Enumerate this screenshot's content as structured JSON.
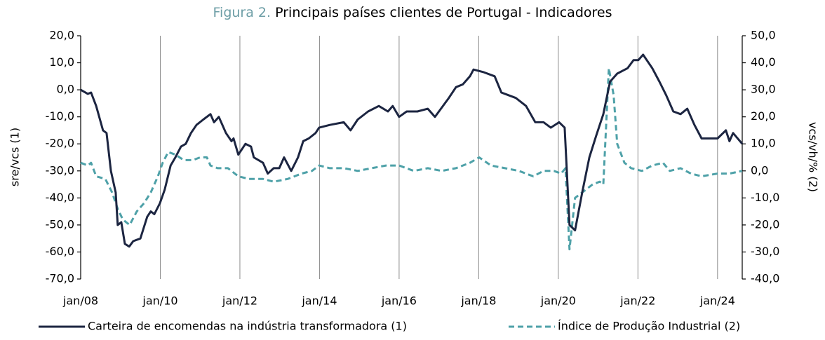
{
  "chart_data": {
    "type": "line",
    "title_label": "Figura 2.",
    "title": "Principais países clientes de Portugal - Indicadores",
    "ylabel": "sre/vcs (1)",
    "y2label": "vcs/vh/% (2)",
    "xlim": [
      2008,
      2024.62
    ],
    "xticks": [
      {
        "value": 2008,
        "label": "jan/08"
      },
      {
        "value": 2010,
        "label": "jan/10"
      },
      {
        "value": 2012,
        "label": "jan/12"
      },
      {
        "value": 2014,
        "label": "jan/14"
      },
      {
        "value": 2016,
        "label": "jan/16"
      },
      {
        "value": 2018,
        "label": "jan/18"
      },
      {
        "value": 2020,
        "label": "jan/20"
      },
      {
        "value": 2022,
        "label": "jan/22"
      },
      {
        "value": 2024,
        "label": "jan/24"
      }
    ],
    "ylim": [
      -70,
      20
    ],
    "yticks": [
      {
        "value": 20,
        "label": "20,0"
      },
      {
        "value": 10,
        "label": "10,0"
      },
      {
        "value": 0,
        "label": "0,0"
      },
      {
        "value": -10,
        "label": "-10,0"
      },
      {
        "value": -20,
        "label": "-20,0"
      },
      {
        "value": -30,
        "label": "-30,0"
      },
      {
        "value": -40,
        "label": "-40,0"
      },
      {
        "value": -50,
        "label": "-50,0"
      },
      {
        "value": -60,
        "label": "-60,0"
      },
      {
        "value": -70,
        "label": "-70,0"
      }
    ],
    "y2lim": [
      -40,
      50
    ],
    "y2ticks": [
      {
        "value": 50,
        "label": "50,0"
      },
      {
        "value": 40,
        "label": "40,0"
      },
      {
        "value": 30,
        "label": "30,0"
      },
      {
        "value": 20,
        "label": "20,0"
      },
      {
        "value": 10,
        "label": "10,0"
      },
      {
        "value": 0,
        "label": "0,0"
      },
      {
        "value": -10,
        "label": "-10,0"
      },
      {
        "value": -20,
        "label": "-20,0"
      },
      {
        "value": -30,
        "label": "-30,0"
      },
      {
        "value": -40,
        "label": "-40,0"
      }
    ],
    "grid": "x",
    "series": [
      {
        "name": "Carteira de encomendas na indústria transformadora (1)",
        "color": "#1c2541",
        "style": "solid",
        "axis": "y",
        "x": [
          2008.0,
          2008.18,
          2008.26,
          2008.39,
          2008.56,
          2008.65,
          2008.76,
          2008.88,
          2008.93,
          2009.02,
          2009.11,
          2009.22,
          2009.32,
          2009.5,
          2009.67,
          2009.76,
          2009.85,
          2009.99,
          2010.11,
          2010.26,
          2010.38,
          2010.52,
          2010.64,
          2010.77,
          2010.91,
          2011.08,
          2011.26,
          2011.35,
          2011.47,
          2011.65,
          2011.79,
          2011.84,
          2011.96,
          2012.05,
          2012.14,
          2012.28,
          2012.35,
          2012.58,
          2012.7,
          2012.85,
          2012.99,
          2013.11,
          2013.29,
          2013.46,
          2013.59,
          2013.73,
          2013.9,
          2013.99,
          2014.26,
          2014.61,
          2014.78,
          2014.96,
          2015.22,
          2015.49,
          2015.72,
          2015.84,
          2016.0,
          2016.19,
          2016.46,
          2016.72,
          2016.9,
          2017.25,
          2017.43,
          2017.6,
          2017.78,
          2017.87,
          2018.13,
          2018.4,
          2018.57,
          2018.75,
          2018.93,
          2019.19,
          2019.42,
          2019.63,
          2019.81,
          2020.02,
          2020.16,
          2020.28,
          2020.42,
          2020.6,
          2020.78,
          2020.95,
          2021.13,
          2021.3,
          2021.48,
          2021.74,
          2021.89,
          2022.01,
          2022.13,
          2022.36,
          2022.54,
          2022.71,
          2022.89,
          2023.07,
          2023.24,
          2023.42,
          2023.6,
          2023.77,
          2024.0,
          2024.21,
          2024.3,
          2024.39,
          2024.62
        ],
        "values": [
          0,
          -1.5,
          -1,
          -6,
          -15,
          -16,
          -30,
          -38,
          -50,
          -49,
          -57,
          -58,
          -56,
          -55,
          -47,
          -45,
          -46,
          -42,
          -37,
          -28,
          -25,
          -21,
          -20,
          -16,
          -13,
          -11,
          -9,
          -12,
          -10,
          -16,
          -19,
          -18,
          -24,
          -22,
          -20,
          -21,
          -25,
          -27,
          -31,
          -29,
          -29,
          -25,
          -30,
          -25,
          -19,
          -18,
          -16,
          -14,
          -13,
          -12,
          -15,
          -11,
          -8,
          -6,
          -8,
          -6,
          -10,
          -8,
          -8,
          -7,
          -10,
          -3,
          1,
          2,
          5,
          7.5,
          6.5,
          5,
          -1,
          -2,
          -3,
          -6,
          -12,
          -12,
          -14,
          -12,
          -14,
          -50,
          -52,
          -38,
          -25,
          -17,
          -9,
          3,
          6,
          8,
          11,
          11,
          13,
          8,
          3,
          -2,
          -8,
          -9,
          -7,
          -13,
          -18,
          -18,
          -18,
          -15,
          -19,
          -16,
          -20
        ]
      },
      {
        "name": "Índice de Produção Industrial (2)",
        "color": "#4ea1a8",
        "style": "dashed",
        "axis": "y2",
        "x": [
          2008.0,
          2008.18,
          2008.26,
          2008.39,
          2008.62,
          2008.79,
          2008.93,
          2009.06,
          2009.23,
          2009.41,
          2009.59,
          2009.76,
          2009.94,
          2010.06,
          2010.2,
          2010.38,
          2010.59,
          2010.82,
          2011.0,
          2011.17,
          2011.26,
          2011.44,
          2011.7,
          2011.96,
          2012.23,
          2012.58,
          2012.85,
          2013.2,
          2013.55,
          2013.81,
          2013.99,
          2014.26,
          2014.61,
          2014.96,
          2015.31,
          2015.67,
          2016.0,
          2016.37,
          2016.72,
          2017.07,
          2017.43,
          2017.78,
          2018.01,
          2018.31,
          2018.66,
          2019.01,
          2019.37,
          2019.63,
          2019.89,
          2020.07,
          2020.18,
          2020.28,
          2020.42,
          2020.6,
          2020.86,
          2021.04,
          2021.13,
          2021.27,
          2021.39,
          2021.48,
          2021.66,
          2021.83,
          2022.1,
          2022.36,
          2022.63,
          2022.8,
          2023.07,
          2023.33,
          2023.6,
          2024.0,
          2024.3,
          2024.62
        ],
        "values": [
          3,
          2,
          3,
          -2,
          -3,
          -8,
          -14,
          -18,
          -20,
          -15,
          -12,
          -8,
          -2,
          3,
          7,
          6,
          4,
          4,
          5,
          5,
          2,
          1,
          1,
          -2,
          -3,
          -3,
          -4,
          -3,
          -1,
          0,
          2,
          1,
          1,
          0,
          1,
          2,
          2,
          0,
          1,
          0,
          1,
          3,
          5,
          2,
          1,
          0,
          -2,
          0,
          0,
          -1,
          1,
          -29,
          -10,
          -8,
          -5,
          -4,
          -5,
          38,
          28,
          10,
          3,
          1,
          0,
          2,
          3,
          0,
          1,
          -1,
          -2,
          -1,
          -1,
          0
        ]
      }
    ]
  }
}
